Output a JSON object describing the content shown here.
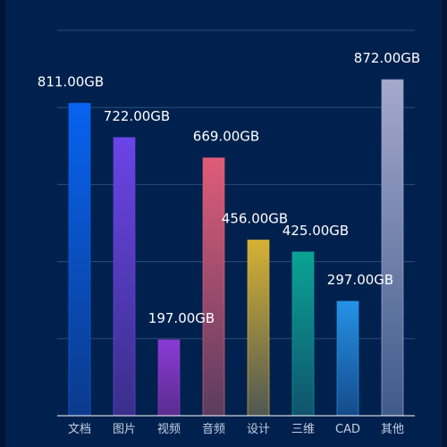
{
  "chart_data": {
    "type": "bar",
    "categories": [
      "文档",
      "图片",
      "视频",
      "音频",
      "设计",
      "三维",
      "CAD",
      "其他"
    ],
    "values": [
      811,
      722,
      197,
      669,
      456,
      425,
      297,
      872
    ],
    "value_labels": [
      "811.00GB",
      "722.00GB",
      "197.00GB",
      "669.00GB",
      "456.00GB",
      "425.00GB",
      "297.00GB",
      "872.00GB"
    ],
    "unit": "GB",
    "title": "",
    "xlabel": "",
    "ylabel": "",
    "ylim": [
      0,
      1000
    ],
    "grid": true,
    "legend": "none",
    "colors": {
      "background": "#00214e",
      "grid": "#2e4a78",
      "axis": "#ffffff",
      "bars": [
        [
          "#0863f0",
          "#0b3a8c"
        ],
        [
          "#6b44e6",
          "#3a2f8a"
        ],
        [
          "#8a3ad4",
          "#5a2c8e"
        ],
        [
          "#e05c78",
          "#5a3c60"
        ],
        [
          "#d6b134",
          "#4f5852"
        ],
        [
          "#0aa394",
          "#10536e"
        ],
        [
          "#2592e6",
          "#154a8a"
        ],
        [
          "#a5a9cc",
          "#3f5a8a"
        ]
      ]
    }
  }
}
